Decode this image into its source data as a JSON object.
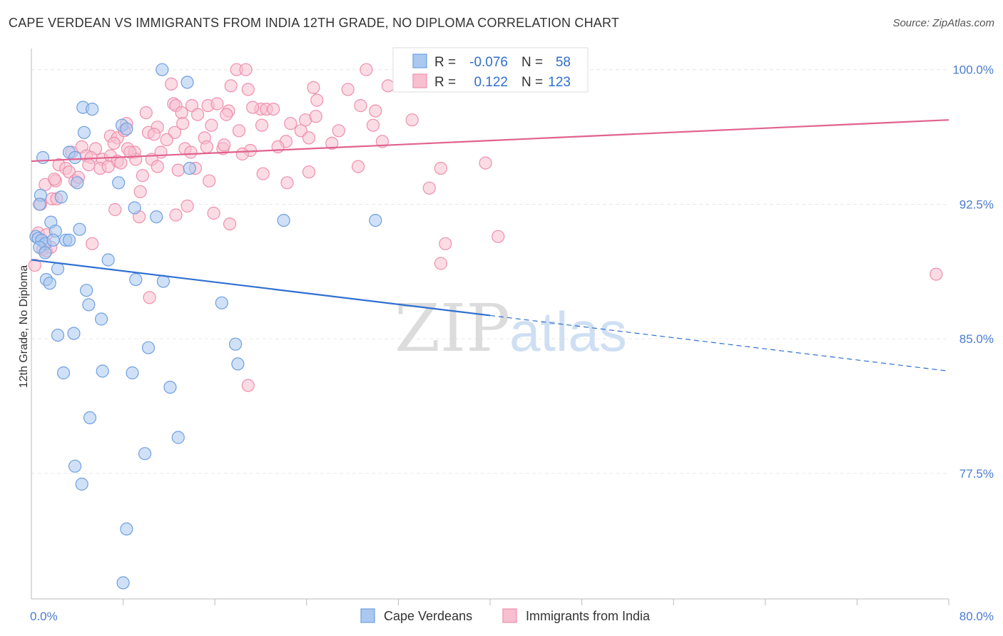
{
  "title": "CAPE VERDEAN VS IMMIGRANTS FROM INDIA 12TH GRADE, NO DIPLOMA CORRELATION CHART",
  "source": "Source: ZipAtlas.com",
  "watermark": {
    "zip": "ZIP",
    "atlas": "atlas"
  },
  "colors": {
    "blue_fill": "#aac8f0",
    "blue_stroke": "#6f9fe0",
    "blue_line": "#2f6fd0",
    "pink_fill": "#f7bfd0",
    "pink_stroke": "#ee8fae",
    "pink_line": "#e0628f",
    "tick_text": "#4a7bd0",
    "grid": "#e6e6e6"
  },
  "legend_top": [
    {
      "r_label": "R =",
      "r_value": "-0.076",
      "n_label": "N =",
      "n_value": "58"
    },
    {
      "r_label": "R =",
      "r_value": "0.122",
      "n_label": "N =",
      "n_value": "123"
    }
  ],
  "legend_bottom": [
    "Cape Verdeans",
    "Immigrants from India"
  ],
  "chart_data": {
    "type": "scatter",
    "title": "CAPE VERDEAN VS IMMIGRANTS FROM INDIA 12TH GRADE, NO DIPLOMA CORRELATION CHART",
    "xlabel": "",
    "ylabel": "12th Grade, No Diploma",
    "xlim": [
      0,
      80
    ],
    "ylim": [
      70.5,
      101.5
    ],
    "x_ticks": [
      "0.0%",
      "80.0%"
    ],
    "y_ticks": [
      {
        "value": 100.0,
        "label": "100.0%"
      },
      {
        "value": 92.5,
        "label": "92.5%"
      },
      {
        "value": 85.0,
        "label": "85.0%"
      },
      {
        "value": 77.5,
        "label": "77.5%"
      }
    ],
    "grid": true,
    "legend_position": "top-center",
    "series": [
      {
        "name": "Cape Verdeans",
        "R": -0.076,
        "N": 58,
        "trend": {
          "x0": 0.0,
          "y0": 89.4,
          "x1": 40.0,
          "y1": 86.3,
          "dashed_to_x": 80.0,
          "dashed_to_y": 83.2
        },
        "points": [
          [
            11.4,
            100.0
          ],
          [
            13.6,
            99.3
          ],
          [
            4.5,
            97.9
          ],
          [
            5.3,
            97.8
          ],
          [
            4.6,
            96.5
          ],
          [
            7.9,
            96.9
          ],
          [
            8.3,
            96.7
          ],
          [
            1.0,
            95.1
          ],
          [
            3.3,
            95.4
          ],
          [
            3.8,
            95.1
          ],
          [
            13.8,
            94.5
          ],
          [
            7.6,
            93.7
          ],
          [
            4.0,
            93.7
          ],
          [
            0.8,
            93.0
          ],
          [
            2.6,
            92.9
          ],
          [
            0.7,
            92.5
          ],
          [
            9.0,
            92.3
          ],
          [
            10.9,
            91.8
          ],
          [
            1.7,
            91.5
          ],
          [
            22.0,
            91.6
          ],
          [
            30.0,
            91.6
          ],
          [
            2.1,
            91.0
          ],
          [
            4.2,
            91.1
          ],
          [
            0.4,
            90.7
          ],
          [
            0.6,
            90.6
          ],
          [
            0.9,
            90.5
          ],
          [
            1.2,
            90.3
          ],
          [
            1.9,
            90.5
          ],
          [
            3.0,
            90.5
          ],
          [
            3.3,
            90.5
          ],
          [
            0.7,
            90.1
          ],
          [
            1.2,
            89.8
          ],
          [
            6.7,
            89.4
          ],
          [
            2.3,
            88.9
          ],
          [
            9.1,
            88.3
          ],
          [
            1.3,
            88.3
          ],
          [
            1.6,
            88.1
          ],
          [
            11.5,
            88.2
          ],
          [
            4.8,
            87.7
          ],
          [
            5.0,
            86.9
          ],
          [
            16.6,
            87.0
          ],
          [
            6.1,
            86.1
          ],
          [
            2.3,
            85.2
          ],
          [
            3.7,
            85.3
          ],
          [
            10.2,
            84.5
          ],
          [
            17.8,
            84.7
          ],
          [
            18.0,
            83.6
          ],
          [
            2.8,
            83.1
          ],
          [
            6.2,
            83.2
          ],
          [
            8.8,
            83.1
          ],
          [
            12.1,
            82.3
          ],
          [
            5.1,
            80.6
          ],
          [
            12.8,
            79.5
          ],
          [
            9.9,
            78.6
          ],
          [
            3.8,
            77.9
          ],
          [
            4.4,
            76.9
          ],
          [
            8.3,
            74.4
          ],
          [
            8.0,
            71.4
          ]
        ]
      },
      {
        "name": "Immigrants from India",
        "R": 0.122,
        "N": 123,
        "trend": {
          "x0": 0.0,
          "y0": 94.9,
          "x1": 80.0,
          "y1": 97.2
        },
        "points": [
          [
            17.9,
            100.0
          ],
          [
            18.7,
            100.0
          ],
          [
            29.2,
            100.0
          ],
          [
            12.2,
            99.2
          ],
          [
            17.4,
            99.1
          ],
          [
            24.6,
            99.0
          ],
          [
            18.9,
            98.9
          ],
          [
            27.6,
            98.9
          ],
          [
            31.1,
            99.1
          ],
          [
            32.2,
            99.1
          ],
          [
            12.4,
            98.1
          ],
          [
            12.6,
            98.0
          ],
          [
            14.0,
            98.0
          ],
          [
            15.4,
            98.0
          ],
          [
            16.2,
            98.1
          ],
          [
            20.0,
            97.8
          ],
          [
            20.5,
            97.8
          ],
          [
            21.1,
            97.8
          ],
          [
            24.9,
            98.3
          ],
          [
            28.7,
            98.0
          ],
          [
            30.0,
            97.7
          ],
          [
            10.0,
            97.6
          ],
          [
            13.1,
            97.6
          ],
          [
            14.5,
            97.5
          ],
          [
            17.2,
            97.7
          ],
          [
            19.3,
            97.9
          ],
          [
            23.9,
            97.2
          ],
          [
            24.8,
            97.4
          ],
          [
            33.2,
            97.2
          ],
          [
            8.3,
            97.0
          ],
          [
            11.0,
            96.8
          ],
          [
            12.5,
            96.5
          ],
          [
            15.7,
            96.9
          ],
          [
            18.1,
            96.6
          ],
          [
            20.1,
            96.9
          ],
          [
            22.6,
            97.0
          ],
          [
            23.5,
            96.6
          ],
          [
            26.8,
            96.6
          ],
          [
            29.8,
            96.9
          ],
          [
            6.9,
            96.3
          ],
          [
            7.5,
            96.2
          ],
          [
            8.1,
            96.6
          ],
          [
            10.2,
            96.5
          ],
          [
            10.7,
            96.4
          ],
          [
            11.8,
            96.1
          ],
          [
            15.1,
            96.2
          ],
          [
            22.2,
            96.0
          ],
          [
            24.2,
            96.2
          ],
          [
            4.4,
            95.7
          ],
          [
            5.6,
            95.6
          ],
          [
            7.2,
            95.9
          ],
          [
            8.4,
            95.6
          ],
          [
            9.0,
            95.4
          ],
          [
            11.3,
            95.4
          ],
          [
            13.4,
            95.6
          ],
          [
            15.3,
            95.7
          ],
          [
            16.7,
            95.6
          ],
          [
            19.1,
            95.5
          ],
          [
            3.5,
            95.4
          ],
          [
            4.8,
            95.2
          ],
          [
            5.2,
            95.1
          ],
          [
            6.2,
            95.0
          ],
          [
            6.9,
            95.2
          ],
          [
            7.5,
            94.9
          ],
          [
            9.1,
            95.0
          ],
          [
            10.5,
            95.0
          ],
          [
            13.9,
            95.4
          ],
          [
            16.8,
            95.8
          ],
          [
            18.4,
            95.3
          ],
          [
            2.4,
            94.7
          ],
          [
            3.0,
            94.5
          ],
          [
            3.3,
            94.3
          ],
          [
            5.0,
            94.7
          ],
          [
            6.0,
            94.5
          ],
          [
            7.8,
            94.8
          ],
          [
            11.0,
            94.6
          ],
          [
            12.8,
            94.4
          ],
          [
            14.3,
            94.5
          ],
          [
            20.2,
            94.2
          ],
          [
            24.2,
            94.3
          ],
          [
            28.5,
            94.6
          ],
          [
            35.7,
            94.5
          ],
          [
            39.6,
            94.8
          ],
          [
            1.2,
            93.6
          ],
          [
            2.1,
            93.8
          ],
          [
            2.0,
            93.9
          ],
          [
            3.8,
            93.8
          ],
          [
            9.5,
            93.2
          ],
          [
            15.5,
            93.8
          ],
          [
            22.3,
            93.7
          ],
          [
            34.7,
            93.4
          ],
          [
            1.8,
            92.8
          ],
          [
            2.2,
            92.8
          ],
          [
            0.8,
            92.5
          ],
          [
            13.6,
            92.4
          ],
          [
            7.3,
            92.2
          ],
          [
            9.4,
            91.8
          ],
          [
            12.6,
            91.9
          ],
          [
            15.9,
            92.0
          ],
          [
            17.3,
            91.4
          ],
          [
            0.6,
            90.9
          ],
          [
            1.3,
            90.8
          ],
          [
            5.3,
            90.3
          ],
          [
            36.1,
            90.3
          ],
          [
            40.7,
            90.7
          ],
          [
            1.0,
            90.0
          ],
          [
            1.3,
            89.9
          ],
          [
            0.3,
            89.1
          ],
          [
            35.7,
            89.2
          ],
          [
            78.9,
            88.6
          ],
          [
            10.3,
            87.3
          ],
          [
            18.9,
            82.4
          ],
          [
            0.9,
            90.5
          ],
          [
            1.7,
            90.1
          ],
          [
            4.1,
            94.0
          ],
          [
            6.7,
            94.6
          ],
          [
            8.6,
            95.4
          ],
          [
            17.0,
            97.5
          ],
          [
            21.5,
            95.7
          ],
          [
            26.2,
            95.9
          ],
          [
            13.2,
            97.0
          ],
          [
            9.7,
            94.1
          ],
          [
            30.6,
            96.0
          ]
        ]
      }
    ]
  }
}
